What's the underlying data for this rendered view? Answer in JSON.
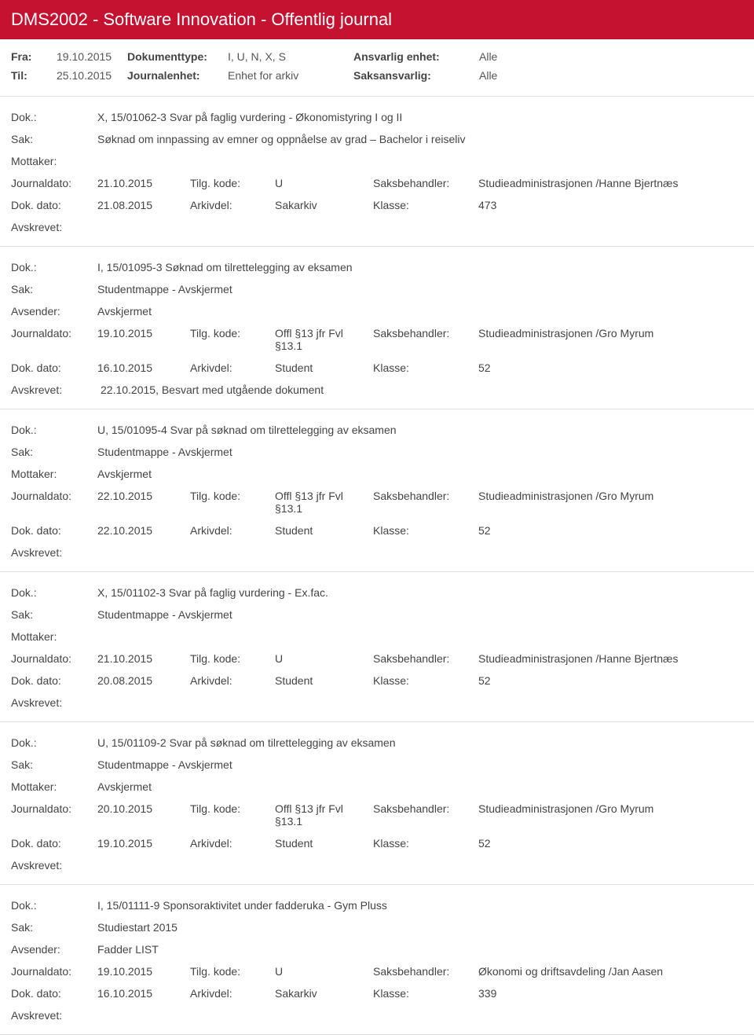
{
  "header": {
    "title": "DMS2002 - Software Innovation - Offentlig journal"
  },
  "filters": {
    "fra_label": "Fra:",
    "fra_value": "19.10.2015",
    "til_label": "Til:",
    "til_value": "25.10.2015",
    "doktype_label": "Dokumenttype:",
    "doktype_value": "I, U, N, X, S",
    "journalenhet_label": "Journalenhet:",
    "journalenhet_value": "Enhet for arkiv",
    "ansvarlig_label": "Ansvarlig enhet:",
    "ansvarlig_value": "Alle",
    "saksansvarlig_label": "Saksansvarlig:",
    "saksansvarlig_value": "Alle"
  },
  "labels": {
    "dok": "Dok.:",
    "sak": "Sak:",
    "mottaker": "Mottaker:",
    "avsender": "Avsender:",
    "journaldato": "Journaldato:",
    "dokdato": "Dok. dato:",
    "tilgkode": "Tilg. kode:",
    "arkivdel": "Arkivdel:",
    "saksbehandler": "Saksbehandler:",
    "klasse": "Klasse:",
    "avskrevet": "Avskrevet:"
  },
  "entries": [
    {
      "dok": "X, 15/01062-3 Svar på faglig vurdering - Økonomistyring I og II",
      "sak": "Søknad om innpassing av emner og oppnåelse av grad – Bachelor i reiseliv",
      "party_label": "Mottaker:",
      "party_value": "",
      "journaldato": "21.10.2015",
      "tilgkode": "U",
      "saksbehandler": "Studieadministrasjonen /Hanne Bjertnæs",
      "dokdato": "21.08.2015",
      "arkivdel": "Sakarkiv",
      "klasse": "473",
      "avskrevet": ""
    },
    {
      "dok": "I, 15/01095-3 Søknad om tilrettelegging av eksamen",
      "sak": "Studentmappe - Avskjermet",
      "party_label": "Avsender:",
      "party_value": "Avskjermet",
      "journaldato": "19.10.2015",
      "tilgkode": "Offl §13 jfr Fvl §13.1",
      "saksbehandler": "Studieadministrasjonen /Gro Myrum",
      "dokdato": "16.10.2015",
      "arkivdel": "Student",
      "klasse": "52",
      "avskrevet": "22.10.2015, Besvart med utgående dokument"
    },
    {
      "dok": "U, 15/01095-4 Svar på søknad om tilrettelegging av eksamen",
      "sak": "Studentmappe - Avskjermet",
      "party_label": "Mottaker:",
      "party_value": "Avskjermet",
      "journaldato": "22.10.2015",
      "tilgkode": "Offl §13 jfr Fvl §13.1",
      "saksbehandler": "Studieadministrasjonen /Gro Myrum",
      "dokdato": "22.10.2015",
      "arkivdel": "Student",
      "klasse": "52",
      "avskrevet": ""
    },
    {
      "dok": "X, 15/01102-3 Svar på faglig vurdering - Ex.fac.",
      "sak": "Studentmappe - Avskjermet",
      "party_label": "Mottaker:",
      "party_value": "",
      "journaldato": "21.10.2015",
      "tilgkode": "U",
      "saksbehandler": "Studieadministrasjonen /Hanne Bjertnæs",
      "dokdato": "20.08.2015",
      "arkivdel": "Student",
      "klasse": "52",
      "avskrevet": ""
    },
    {
      "dok": "U, 15/01109-2 Svar på søknad om tilrettelegging av eksamen",
      "sak": "Studentmappe - Avskjermet",
      "party_label": "Mottaker:",
      "party_value": "Avskjermet",
      "journaldato": "20.10.2015",
      "tilgkode": "Offl §13 jfr Fvl §13.1",
      "saksbehandler": "Studieadministrasjonen /Gro Myrum",
      "dokdato": "19.10.2015",
      "arkivdel": "Student",
      "klasse": "52",
      "avskrevet": ""
    },
    {
      "dok": "I, 15/01111-9 Sponsoraktivitet under fadderuka - Gym Pluss",
      "sak": "Studiestart 2015",
      "party_label": "Avsender:",
      "party_value": "Fadder LIST",
      "journaldato": "19.10.2015",
      "tilgkode": "U",
      "saksbehandler": "Økonomi og driftsavdeling /Jan Aasen",
      "dokdato": "16.10.2015",
      "arkivdel": "Sakarkiv",
      "klasse": "339",
      "avskrevet": ""
    }
  ]
}
